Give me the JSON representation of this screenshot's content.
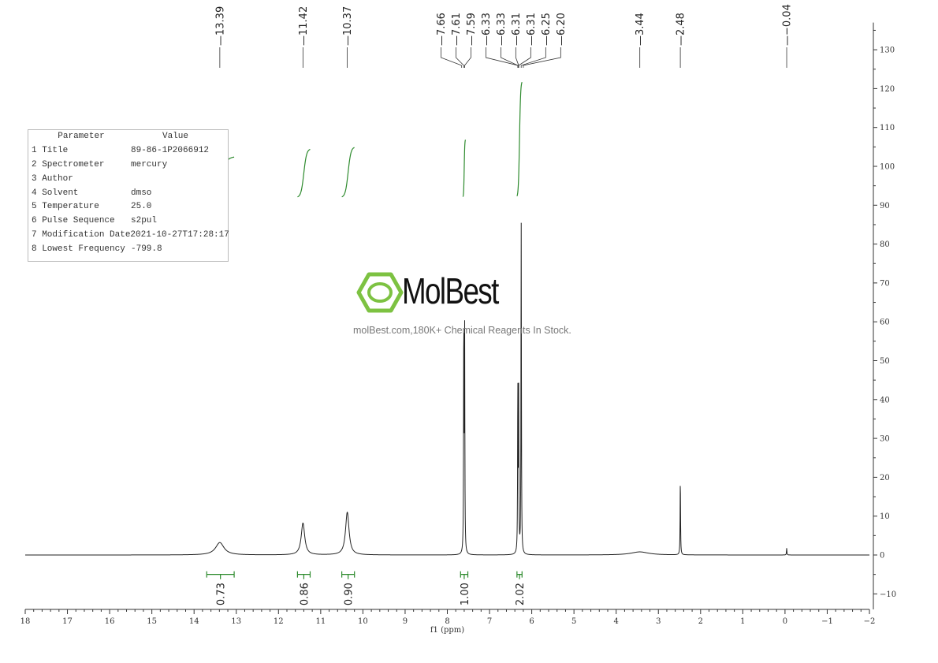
{
  "chart_data": {
    "type": "line",
    "title": "",
    "xlabel": "f1 (ppm)",
    "ylabel": "",
    "xlim": [
      18,
      -2
    ],
    "ylim": [
      -14,
      137
    ],
    "x_ticks": [
      18,
      17,
      16,
      15,
      14,
      13,
      12,
      11,
      10,
      9,
      8,
      7,
      6,
      5,
      4,
      3,
      2,
      1,
      0,
      -1,
      -2
    ],
    "y_ticks": [
      -10,
      0,
      10,
      20,
      30,
      40,
      50,
      60,
      70,
      80,
      90,
      100,
      110,
      120,
      130
    ],
    "grid": false,
    "colors": {
      "spectrum": "#222222",
      "integral": "#2e8b2e"
    },
    "peaks": [
      {
        "ppm": 13.39,
        "height": 3.2,
        "width": 0.12
      },
      {
        "ppm": 11.42,
        "height": 8.2,
        "width": 0.05
      },
      {
        "ppm": 10.37,
        "height": 11.0,
        "width": 0.05
      },
      {
        "ppm": 7.61,
        "height": 58,
        "width": 0.006
      },
      {
        "ppm": 7.59,
        "height": 57,
        "width": 0.006
      },
      {
        "ppm": 6.33,
        "height": 42,
        "width": 0.006
      },
      {
        "ppm": 6.31,
        "height": 40,
        "width": 0.006
      },
      {
        "ppm": 6.25,
        "height": 86,
        "width": 0.006
      },
      {
        "ppm": 3.44,
        "height": 0.8,
        "width": 0.25
      },
      {
        "ppm": 2.48,
        "height": 19.3,
        "width": 0.006
      },
      {
        "ppm": -0.04,
        "height": 1.8,
        "width": 0.006
      }
    ],
    "peak_labels": [
      "13.39",
      "11.42",
      "10.37",
      "7.66",
      "7.61",
      "7.59",
      "6.33",
      "6.33",
      "6.31",
      "6.31",
      "6.25",
      "6.20",
      "3.44",
      "2.48",
      "-0.04"
    ],
    "integrals": [
      {
        "from": 13.7,
        "to": 13.05,
        "start": 92,
        "end": 102.5,
        "value": "0.73"
      },
      {
        "from": 11.55,
        "to": 11.25,
        "start": 92,
        "end": 104.5,
        "value": "0.86"
      },
      {
        "from": 10.5,
        "to": 10.2,
        "start": 92,
        "end": 105,
        "value": "0.90"
      },
      {
        "from": 7.63,
        "to": 7.57,
        "start": 92,
        "end": 107,
        "value": "1.00"
      },
      {
        "from": 6.35,
        "to": 6.23,
        "start": 92,
        "end": 122,
        "value": "2.02"
      }
    ]
  },
  "parameters": {
    "header": [
      "Parameter",
      "Value"
    ],
    "rows": [
      [
        "1 Title",
        "89-86-1P2066912"
      ],
      [
        "2 Spectrometer",
        "mercury"
      ],
      [
        "3 Author",
        ""
      ],
      [
        "4 Solvent",
        "dmso"
      ],
      [
        "5 Temperature",
        "25.0"
      ],
      [
        "6 Pulse Sequence",
        "s2pul"
      ],
      [
        "7 Modification Date",
        "2021-10-27T17:28:17"
      ],
      [
        "8 Lowest Frequency",
        "-799.8"
      ]
    ]
  },
  "watermark": {
    "name": "MolBest",
    "tagline": "molBest.com,180K+ Chemical Reagents In Stock.",
    "color": "#7dc242"
  }
}
